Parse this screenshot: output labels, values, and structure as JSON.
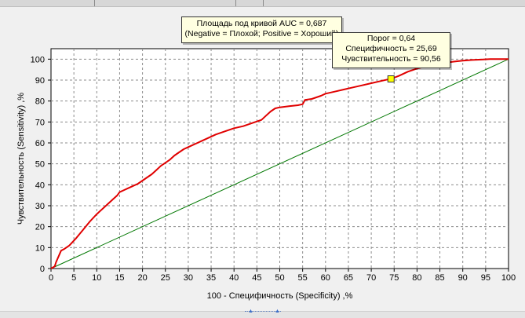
{
  "chart_data": {
    "type": "line",
    "xlabel": "100 - Специфичность (Specificity) ,%",
    "ylabel": "Чувствительность (Sensitivity) ,%",
    "xlim": [
      0,
      100
    ],
    "ylim": [
      0,
      105
    ],
    "x_ticks": [
      0,
      5,
      10,
      15,
      20,
      25,
      30,
      35,
      40,
      45,
      50,
      55,
      60,
      65,
      70,
      75,
      80,
      85,
      90,
      95,
      100
    ],
    "y_ticks": [
      0,
      10,
      20,
      30,
      40,
      50,
      60,
      70,
      80,
      90,
      100
    ],
    "grid": true,
    "series": [
      {
        "color": "#e00000",
        "x": [
          0,
          0.8,
          1.1,
          2.2,
          3,
          4,
          5.5,
          7,
          8.5,
          10,
          12,
          13.5,
          14.5,
          15,
          16,
          17,
          19,
          21,
          22,
          23,
          24,
          25,
          26,
          27,
          28,
          29,
          30,
          32,
          34,
          36,
          38,
          40,
          42,
          44,
          46,
          47,
          48,
          49,
          50,
          52,
          54,
          55,
          55.5,
          57,
          59,
          60,
          62,
          64,
          66,
          68,
          70,
          72,
          74,
          74.3,
          76,
          78,
          80,
          82,
          84,
          86,
          88,
          90,
          92,
          94,
          96,
          98,
          100
        ],
        "y": [
          0,
          1,
          3,
          8.5,
          9.5,
          11,
          14.5,
          18.5,
          22.5,
          26,
          30,
          33,
          35,
          36.5,
          37.5,
          38.5,
          40.5,
          43.5,
          45,
          47,
          49,
          50.5,
          52,
          54,
          55.5,
          57,
          58,
          60,
          62,
          64,
          65.5,
          67,
          68,
          69.5,
          71,
          73,
          75,
          76.5,
          77,
          77.5,
          78,
          78.5,
          80.5,
          81,
          82.5,
          83.5,
          84.5,
          85.5,
          86.5,
          87.5,
          88.5,
          89.5,
          90.5,
          90.56,
          92,
          94,
          95.5,
          96.5,
          97.5,
          98.2,
          98.8,
          99.3,
          99.6,
          99.8,
          100,
          100,
          100
        ]
      },
      {
        "color": "#007700",
        "x": [
          0,
          100
        ],
        "y": [
          0,
          100
        ]
      }
    ],
    "highlight_point": {
      "x": 74.31,
      "y": 90.56,
      "color": "#ffff00"
    },
    "annotations": {
      "auc_line1": "Площадь под кривой AUC = 0,687",
      "auc_line2": "(Negative = Плохой; Positive = Хороший)",
      "point_line1": "Порог =  0,64",
      "point_line2": "Специфичность = 25,69",
      "point_line3": "Чувствительность = 90,56"
    }
  }
}
